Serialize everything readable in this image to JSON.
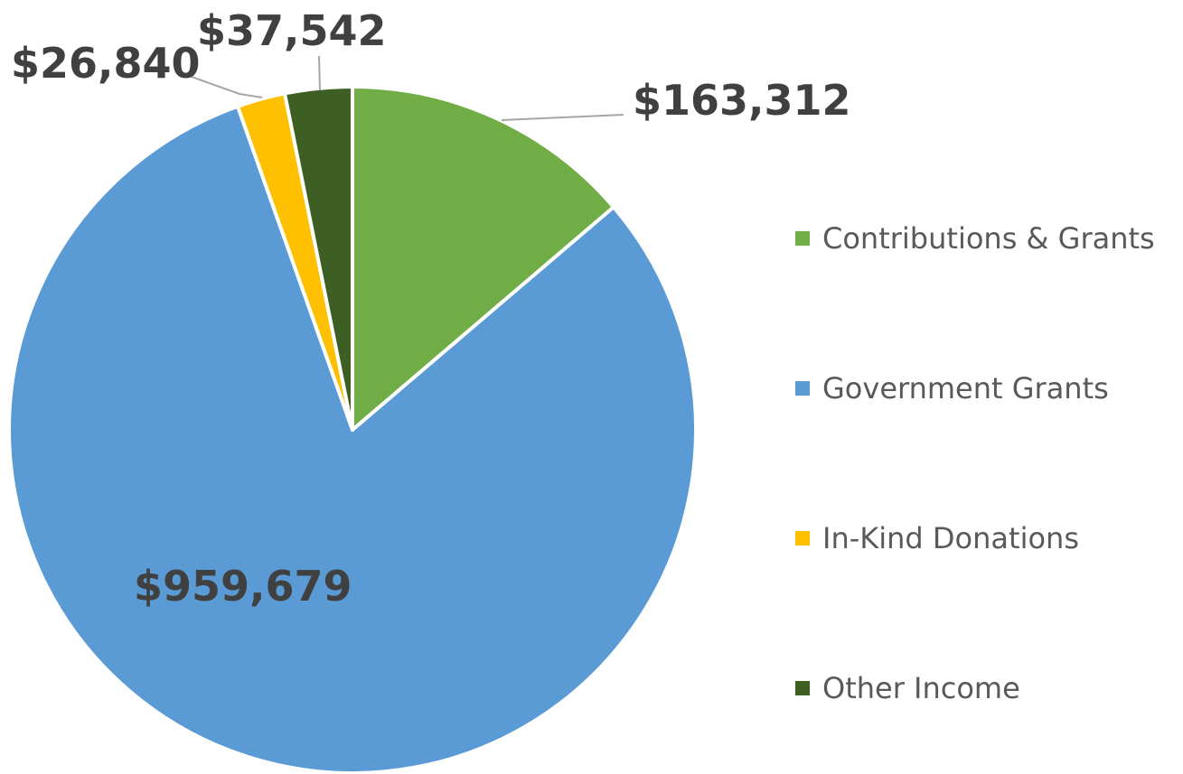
{
  "chart_data": {
    "type": "pie",
    "title": "",
    "categories": [
      "Contributions & Grants",
      "Government Grants",
      "In-Kind Donations",
      "Other Income"
    ],
    "values": [
      163312,
      959679,
      26840,
      37542
    ],
    "data_labels": [
      "$163,312",
      "$959,679",
      "$26,840",
      "$37,542"
    ],
    "colors": [
      "#70ad47",
      "#5b9bd5",
      "#ffc000",
      "#3e5f24"
    ],
    "start_angle_deg": 0,
    "direction": "clockwise",
    "legend_position": "right"
  }
}
